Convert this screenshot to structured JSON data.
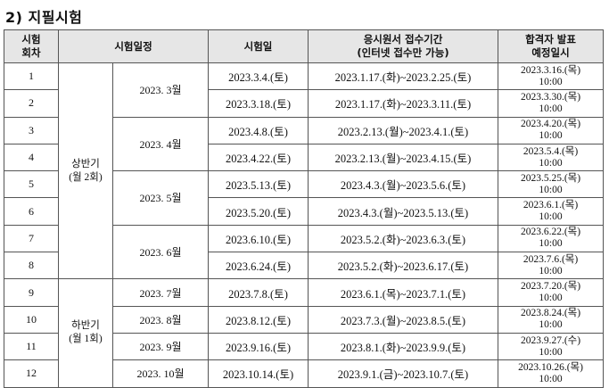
{
  "section_title": "2) 지필시험",
  "headers": {
    "round": [
      "시험",
      "회차"
    ],
    "schedule": "시험일정",
    "exam_date": "시험일",
    "application": [
      "응시원서 접수기간",
      "(인터넷 접수만 가능)"
    ],
    "result": [
      "합격자 발표",
      "예정일시"
    ]
  },
  "halves": [
    {
      "label": [
        "상반기",
        "(월 2회)"
      ]
    },
    {
      "label": [
        "하반기",
        "(월 1회)"
      ]
    }
  ],
  "months": [
    "2023. 3월",
    "2023. 4월",
    "2023. 5월",
    "2023. 6월",
    "2023. 7월",
    "2023. 8월",
    "2023. 9월",
    "2023. 10월"
  ],
  "rows": [
    {
      "round": "1",
      "exam_date": "2023.3.4.(토)",
      "period": "2023.1.17.(화)~2023.2.25.(토)",
      "result_date": "2023.3.16.(목)",
      "result_time": "10:00"
    },
    {
      "round": "2",
      "exam_date": "2023.3.18.(토)",
      "period": "2023.1.17.(화)~2023.3.11.(토)",
      "result_date": "2023.3.30.(목)",
      "result_time": "10:00"
    },
    {
      "round": "3",
      "exam_date": "2023.4.8.(토)",
      "period": "2023.2.13.(월)~2023.4.1.(토)",
      "result_date": "2023.4.20.(목)",
      "result_time": "10:00"
    },
    {
      "round": "4",
      "exam_date": "2023.4.22.(토)",
      "period": "2023.2.13.(월)~2023.4.15.(토)",
      "result_date": "2023.5.4.(목)",
      "result_time": "10:00"
    },
    {
      "round": "5",
      "exam_date": "2023.5.13.(토)",
      "period": "2023.4.3.(월)~2023.5.6.(토)",
      "result_date": "2023.5.25.(목)",
      "result_time": "10:00"
    },
    {
      "round": "6",
      "exam_date": "2023.5.20.(토)",
      "period": "2023.4.3.(월)~2023.5.13.(토)",
      "result_date": "2023.6.1.(목)",
      "result_time": "10:00"
    },
    {
      "round": "7",
      "exam_date": "2023.6.10.(토)",
      "period": "2023.5.2.(화)~2023.6.3.(토)",
      "result_date": "2023.6.22.(목)",
      "result_time": "10:00"
    },
    {
      "round": "8",
      "exam_date": "2023.6.24.(토)",
      "period": "2023.5.2.(화)~2023.6.17.(토)",
      "result_date": "2023.7.6.(목)",
      "result_time": "10:00"
    },
    {
      "round": "9",
      "exam_date": "2023.7.8.(토)",
      "period": "2023.6.1.(목)~2023.7.1.(토)",
      "result_date": "2023.7.20.(목)",
      "result_time": "10:00"
    },
    {
      "round": "10",
      "exam_date": "2023.8.12.(토)",
      "period": "2023.7.3.(월)~2023.8.5.(토)",
      "result_date": "2023.8.24.(목)",
      "result_time": "10:00"
    },
    {
      "round": "11",
      "exam_date": "2023.9.16.(토)",
      "period": "2023.8.1.(화)~2023.9.9.(토)",
      "result_date": "2023.9.27.(수)",
      "result_time": "10:00"
    },
    {
      "round": "12",
      "exam_date": "2023.10.14.(토)",
      "period": "2023.9.1.(금)~2023.10.7.(토)",
      "result_date": "2023.10.26.(목)",
      "result_time": "10:00"
    }
  ]
}
